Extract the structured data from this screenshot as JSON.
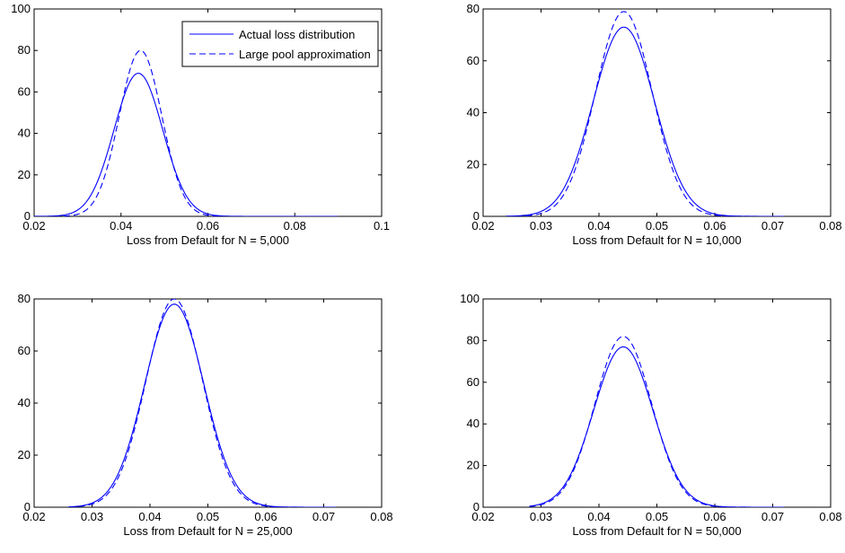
{
  "colors": {
    "series": "#0000ff",
    "axis": "#000000",
    "background": "#ffffff"
  },
  "legend": {
    "entries": [
      {
        "label": "Actual loss distribution",
        "style": "solid"
      },
      {
        "label": "Large pool approximation",
        "style": "dashed"
      }
    ]
  },
  "chart_data": [
    {
      "type": "line",
      "xlabel": "Loss from Default for N = 5,000",
      "ylabel": "",
      "xlim": [
        0.02,
        0.1
      ],
      "ylim": [
        0,
        100
      ],
      "xticks": [
        "0.02",
        "0.04",
        "0.06",
        "0.08",
        "0.1"
      ],
      "yticks": [
        "0",
        "20",
        "40",
        "60",
        "80",
        "100"
      ],
      "grid": false,
      "legend_position": "top-right",
      "series": [
        {
          "name": "Actual loss distribution",
          "style": "solid",
          "mean": 0.044,
          "sd": 0.0056,
          "peak": 69,
          "xrange": [
            0.02,
            0.09
          ]
        },
        {
          "name": "Large pool approximation",
          "style": "dashed",
          "mean": 0.0445,
          "sd": 0.0049,
          "peak": 80,
          "xrange": [
            0.02,
            0.09
          ]
        }
      ]
    },
    {
      "type": "line",
      "xlabel": "Loss from Default for N = 10,000",
      "ylabel": "",
      "xlim": [
        0.02,
        0.08
      ],
      "ylim": [
        0,
        80
      ],
      "xticks": [
        "0.02",
        "0.03",
        "0.04",
        "0.05",
        "0.06",
        "0.07",
        "0.08"
      ],
      "yticks": [
        "0",
        "20",
        "40",
        "60",
        "80"
      ],
      "grid": false,
      "legend_position": "none",
      "series": [
        {
          "name": "Actual loss distribution",
          "style": "solid",
          "mean": 0.0443,
          "sd": 0.0053,
          "peak": 73,
          "xrange": [
            0.024,
            0.072
          ]
        },
        {
          "name": "Large pool approximation",
          "style": "dashed",
          "mean": 0.0443,
          "sd": 0.0049,
          "peak": 79,
          "xrange": [
            0.024,
            0.072
          ]
        }
      ]
    },
    {
      "type": "line",
      "xlabel": "Loss from Default for N = 25,000",
      "ylabel": "",
      "xlim": [
        0.02,
        0.08
      ],
      "ylim": [
        0,
        80
      ],
      "xticks": [
        "0.02",
        "0.03",
        "0.04",
        "0.05",
        "0.06",
        "0.07",
        "0.08"
      ],
      "yticks": [
        "0",
        "20",
        "40",
        "60",
        "80"
      ],
      "grid": false,
      "legend_position": "none",
      "series": [
        {
          "name": "Actual loss distribution",
          "style": "solid",
          "mean": 0.0442,
          "sd": 0.0051,
          "peak": 78,
          "xrange": [
            0.026,
            0.072
          ]
        },
        {
          "name": "Large pool approximation",
          "style": "dashed",
          "mean": 0.0442,
          "sd": 0.0049,
          "peak": 80,
          "xrange": [
            0.026,
            0.072
          ]
        }
      ]
    },
    {
      "type": "line",
      "xlabel": "Loss from Default for N = 50,000",
      "ylabel": "",
      "xlim": [
        0.02,
        0.08
      ],
      "ylim": [
        0,
        100
      ],
      "xticks": [
        "0.02",
        "0.03",
        "0.04",
        "0.05",
        "0.06",
        "0.07",
        "0.08"
      ],
      "yticks": [
        "0",
        "20",
        "40",
        "60",
        "80",
        "100"
      ],
      "grid": false,
      "legend_position": "none",
      "series": [
        {
          "name": "Actual loss distribution",
          "style": "solid",
          "mean": 0.0442,
          "sd": 0.0051,
          "peak": 77,
          "xrange": [
            0.028,
            0.072
          ]
        },
        {
          "name": "Large pool approximation",
          "style": "dashed",
          "mean": 0.0442,
          "sd": 0.0049,
          "peak": 82,
          "xrange": [
            0.028,
            0.072
          ]
        }
      ]
    }
  ]
}
